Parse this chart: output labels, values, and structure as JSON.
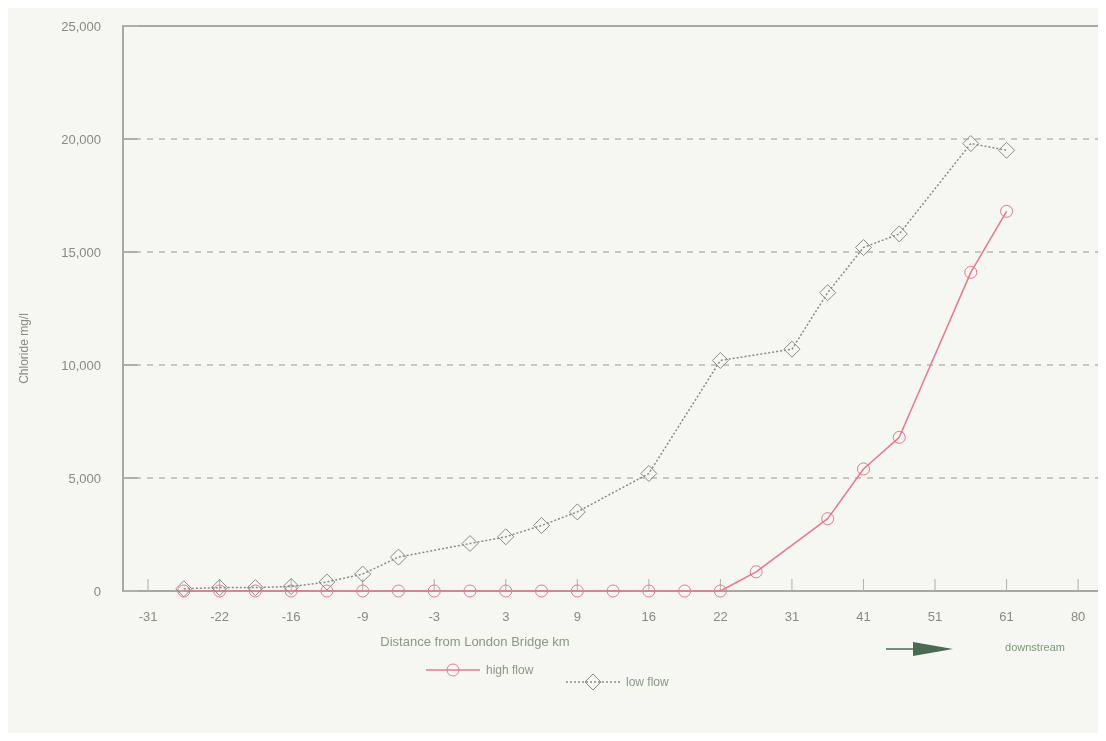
{
  "chart_data": {
    "type": "line",
    "xlabel": "Distance from London Bridge km",
    "ylabel": "Chloride mg/l",
    "categories": [
      "-31",
      null,
      "-22",
      null,
      "-16",
      null,
      "-9",
      null,
      "-3",
      null,
      "3",
      null,
      "9",
      null,
      "16",
      null,
      "22",
      null,
      "31",
      null,
      "41",
      null,
      "51",
      null,
      "61",
      null,
      "80"
    ],
    "series": [
      {
        "name": "high flow",
        "color": "#e8798c",
        "marker": "circle",
        "line_style": "solid",
        "values": [
          null,
          0,
          0,
          0,
          0,
          0,
          0,
          0,
          0,
          0,
          0,
          0,
          0,
          0,
          0,
          0,
          0,
          850,
          null,
          3200,
          5400,
          6800,
          null,
          14100,
          16800,
          null,
          null
        ]
      },
      {
        "name": "low flow",
        "color": "#8a8a8a",
        "marker": "diamond",
        "line_style": "dotted",
        "values": [
          null,
          100,
          150,
          150,
          200,
          400,
          750,
          1500,
          null,
          2100,
          2400,
          2900,
          3500,
          null,
          5200,
          null,
          10200,
          null,
          10700,
          13200,
          15200,
          15800,
          null,
          19800,
          19500,
          null,
          null
        ]
      }
    ],
    "ylim": [
      0,
      25000
    ],
    "yticks": [
      {
        "value": 0,
        "label": "0"
      },
      {
        "value": 5000,
        "label": "5,000"
      },
      {
        "value": 10000,
        "label": "10,000"
      },
      {
        "value": 15000,
        "label": "15,000"
      },
      {
        "value": 20000,
        "label": "20,000"
      },
      {
        "value": 25000,
        "label": "25,000"
      }
    ],
    "grid": "y",
    "legend": "bottom",
    "annotations": [
      "downstream"
    ]
  }
}
